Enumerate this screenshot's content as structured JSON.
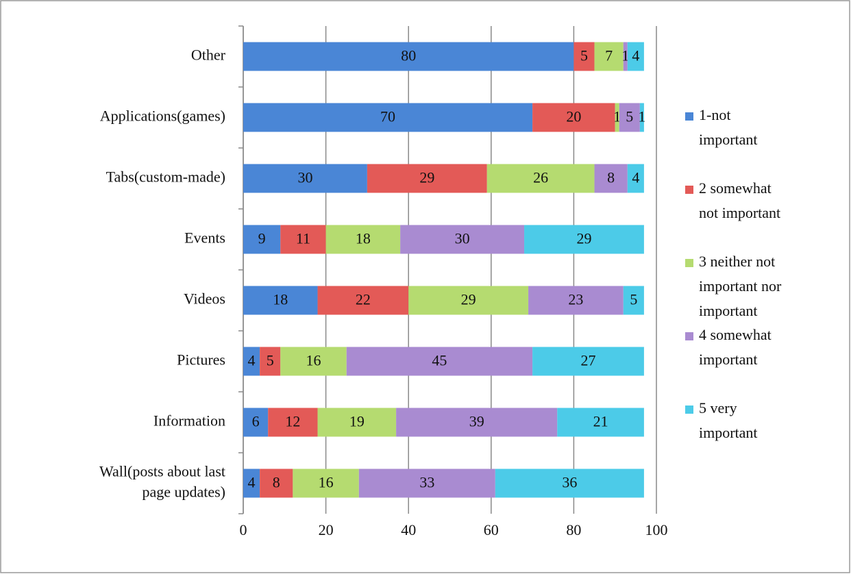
{
  "chart_data": {
    "type": "stacked-bar-horizontal",
    "categories": [
      "Other",
      "Applications(games)",
      "Tabs(custom-made)",
      "Events",
      "Videos",
      "Pictures",
      "Information",
      "Wall(posts about last page updates)"
    ],
    "series": [
      {
        "name": "1-not important",
        "color": "#4a86d6",
        "values": [
          80,
          70,
          30,
          9,
          18,
          4,
          6,
          4
        ]
      },
      {
        "name": "2 somewhat not important",
        "color": "#e35a57",
        "values": [
          5,
          20,
          29,
          11,
          22,
          5,
          12,
          8
        ]
      },
      {
        "name": "3 neither not important nor important",
        "color": "#b5db70",
        "values": [
          7,
          1,
          26,
          18,
          29,
          16,
          19,
          16
        ]
      },
      {
        "name": "4 somewhat important",
        "color": "#a98bd1",
        "values": [
          1,
          5,
          8,
          30,
          23,
          45,
          39,
          33
        ]
      },
      {
        "name": "5 very important",
        "color": "#4ccbe8",
        "values": [
          4,
          1,
          4,
          29,
          5,
          27,
          21,
          36
        ]
      }
    ],
    "xlim": [
      0,
      100
    ],
    "xticks": [
      0,
      20,
      40,
      60,
      80,
      100
    ],
    "grid": true,
    "legend": "right"
  }
}
